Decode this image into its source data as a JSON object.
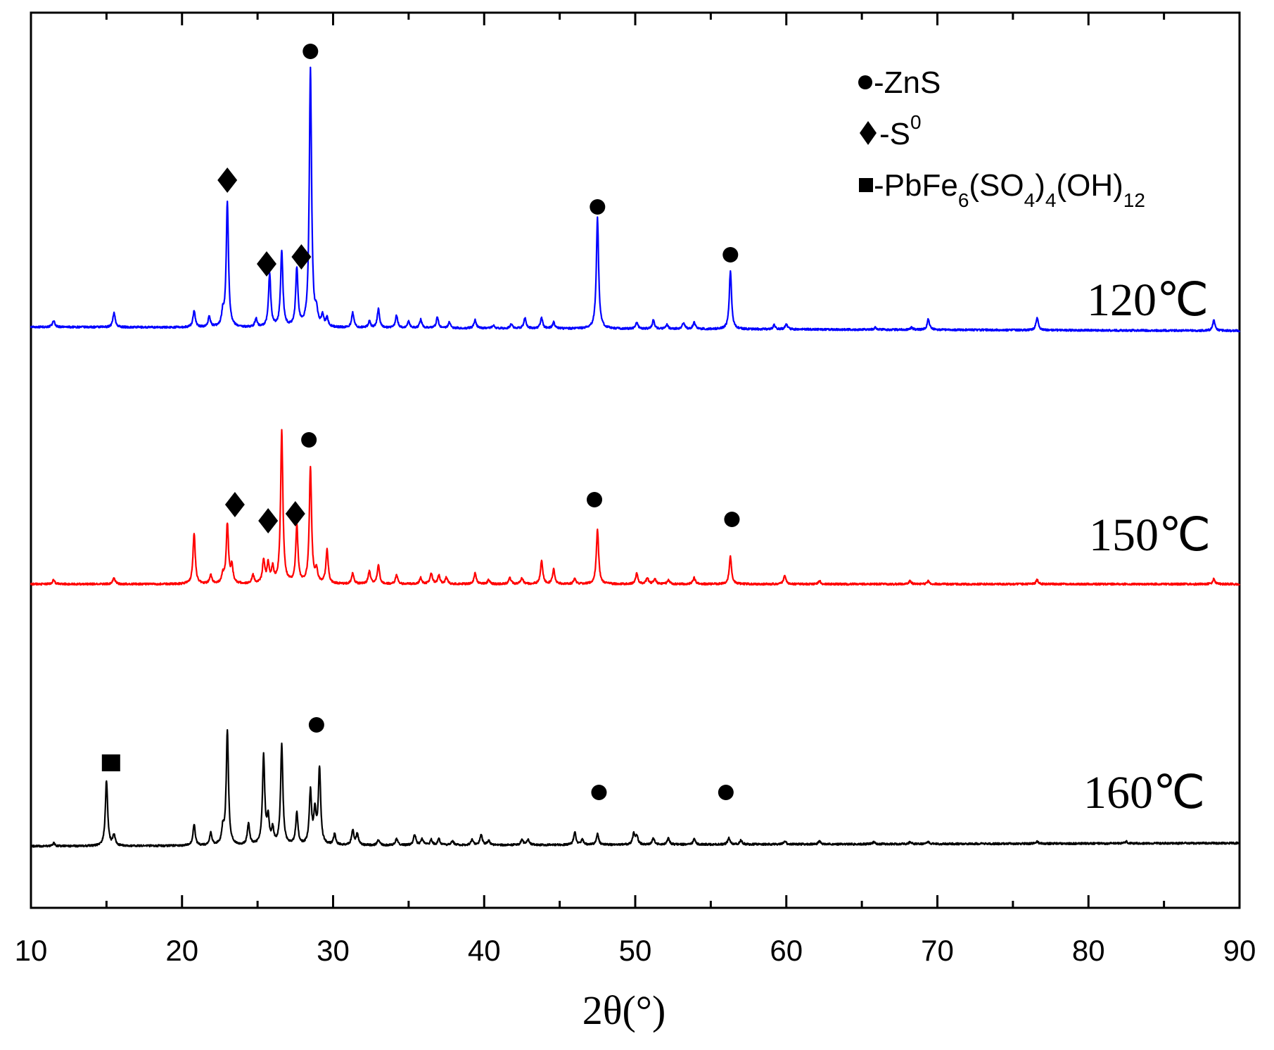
{
  "chart_data": {
    "type": "line",
    "xlabel": "2θ(°)",
    "ylabel": "",
    "xlim": [
      10,
      90
    ],
    "x_ticks": [
      "10",
      "20",
      "30",
      "40",
      "50",
      "60",
      "70",
      "80",
      "90"
    ],
    "y_ticks_shown": false,
    "grid": false,
    "legend": {
      "placement": "top-right",
      "entries": [
        {
          "marker": "circle",
          "prefix": "-ZnS",
          "main": "",
          "sub": "",
          "sup": ""
        },
        {
          "marker": "diamond",
          "prefix": "-S",
          "sup": "0"
        },
        {
          "marker": "square",
          "parts": [
            {
              "t": "-PbFe",
              "k": "n"
            },
            {
              "t": "6",
              "k": "sub"
            },
            {
              "t": "(SO",
              "k": "n"
            },
            {
              "t": "4",
              "k": "sub"
            },
            {
              "t": ")",
              "k": "n"
            },
            {
              "t": "4",
              "k": "sub"
            },
            {
              "t": "(OH)",
              "k": "n"
            },
            {
              "t": "12",
              "k": "sub"
            }
          ]
        }
      ]
    },
    "series": [
      {
        "label": "120℃",
        "color": "#0000ff",
        "baseline": 0.12,
        "peaks": [
          [
            11.5,
            0.06
          ],
          [
            15.5,
            0.14
          ],
          [
            20.8,
            0.16
          ],
          [
            21.8,
            0.1
          ],
          [
            22.7,
            0.12
          ],
          [
            23.0,
            1.18
          ],
          [
            24.9,
            0.08
          ],
          [
            25.8,
            0.5
          ],
          [
            26.6,
            0.72
          ],
          [
            27.6,
            0.55
          ],
          [
            28.5,
            2.45
          ],
          [
            28.9,
            0.12
          ],
          [
            29.3,
            0.1
          ],
          [
            29.6,
            0.08
          ],
          [
            31.3,
            0.14
          ],
          [
            32.4,
            0.06
          ],
          [
            33.0,
            0.18
          ],
          [
            34.2,
            0.12
          ],
          [
            35.0,
            0.06
          ],
          [
            35.8,
            0.08
          ],
          [
            36.9,
            0.1
          ],
          [
            37.7,
            0.06
          ],
          [
            39.4,
            0.08
          ],
          [
            40.6,
            0.03
          ],
          [
            41.8,
            0.04
          ],
          [
            42.7,
            0.1
          ],
          [
            43.8,
            0.1
          ],
          [
            44.6,
            0.06
          ],
          [
            47.5,
            1.05
          ],
          [
            50.1,
            0.06
          ],
          [
            51.2,
            0.08
          ],
          [
            52.1,
            0.04
          ],
          [
            53.2,
            0.06
          ],
          [
            53.9,
            0.06
          ],
          [
            56.3,
            0.55
          ],
          [
            59.2,
            0.04
          ],
          [
            60.0,
            0.05
          ],
          [
            65.9,
            0.02
          ],
          [
            68.3,
            0.02
          ],
          [
            69.4,
            0.1
          ],
          [
            76.6,
            0.12
          ],
          [
            88.3,
            0.1
          ]
        ]
      },
      {
        "label": "150℃",
        "color": "#ff0000",
        "baseline": 0.0,
        "peaks": [
          [
            11.5,
            0.04
          ],
          [
            15.5,
            0.06
          ],
          [
            20.8,
            0.48
          ],
          [
            21.9,
            0.08
          ],
          [
            22.7,
            0.08
          ],
          [
            23.0,
            0.56
          ],
          [
            23.3,
            0.16
          ],
          [
            24.7,
            0.08
          ],
          [
            25.4,
            0.22
          ],
          [
            25.7,
            0.18
          ],
          [
            26.0,
            0.14
          ],
          [
            26.6,
            1.45
          ],
          [
            27.6,
            0.54
          ],
          [
            28.5,
            1.1
          ],
          [
            28.9,
            0.12
          ],
          [
            29.6,
            0.32
          ],
          [
            31.3,
            0.1
          ],
          [
            32.4,
            0.12
          ],
          [
            33.0,
            0.18
          ],
          [
            34.2,
            0.08
          ],
          [
            35.8,
            0.06
          ],
          [
            36.5,
            0.1
          ],
          [
            37.0,
            0.08
          ],
          [
            37.5,
            0.06
          ],
          [
            39.4,
            0.1
          ],
          [
            40.3,
            0.04
          ],
          [
            41.7,
            0.06
          ],
          [
            42.5,
            0.06
          ],
          [
            43.8,
            0.22
          ],
          [
            44.6,
            0.14
          ],
          [
            46.0,
            0.05
          ],
          [
            47.5,
            0.52
          ],
          [
            50.1,
            0.1
          ],
          [
            50.8,
            0.06
          ],
          [
            51.3,
            0.05
          ],
          [
            52.2,
            0.04
          ],
          [
            53.9,
            0.06
          ],
          [
            56.3,
            0.26
          ],
          [
            59.9,
            0.08
          ],
          [
            62.2,
            0.03
          ],
          [
            68.2,
            0.03
          ],
          [
            69.4,
            0.03
          ],
          [
            76.6,
            0.04
          ],
          [
            88.3,
            0.05
          ]
        ]
      },
      {
        "label": "160℃",
        "color": "#000000",
        "baseline": -0.1,
        "peaks": [
          [
            11.5,
            0.03
          ],
          [
            15.0,
            0.62
          ],
          [
            15.5,
            0.1
          ],
          [
            20.8,
            0.2
          ],
          [
            21.9,
            0.12
          ],
          [
            22.7,
            0.14
          ],
          [
            23.0,
            1.08
          ],
          [
            24.4,
            0.2
          ],
          [
            25.4,
            0.84
          ],
          [
            25.7,
            0.24
          ],
          [
            26.0,
            0.14
          ],
          [
            26.6,
            0.95
          ],
          [
            27.6,
            0.3
          ],
          [
            28.5,
            0.5
          ],
          [
            28.8,
            0.3
          ],
          [
            29.1,
            0.72
          ],
          [
            30.1,
            0.1
          ],
          [
            31.3,
            0.14
          ],
          [
            31.6,
            0.1
          ],
          [
            33.0,
            0.05
          ],
          [
            34.2,
            0.06
          ],
          [
            35.4,
            0.1
          ],
          [
            35.9,
            0.06
          ],
          [
            36.5,
            0.05
          ],
          [
            37.0,
            0.06
          ],
          [
            37.9,
            0.04
          ],
          [
            39.2,
            0.05
          ],
          [
            39.8,
            0.1
          ],
          [
            40.3,
            0.04
          ],
          [
            42.5,
            0.05
          ],
          [
            42.9,
            0.05
          ],
          [
            46.0,
            0.12
          ],
          [
            46.5,
            0.05
          ],
          [
            47.5,
            0.1
          ],
          [
            49.9,
            0.1
          ],
          [
            50.1,
            0.08
          ],
          [
            51.2,
            0.06
          ],
          [
            52.2,
            0.06
          ],
          [
            53.9,
            0.05
          ],
          [
            56.2,
            0.06
          ],
          [
            57.0,
            0.04
          ],
          [
            59.9,
            0.03
          ],
          [
            62.2,
            0.03
          ],
          [
            65.8,
            0.02
          ],
          [
            68.2,
            0.02
          ],
          [
            69.4,
            0.02
          ],
          [
            76.6,
            0.02
          ],
          [
            82.5,
            0.02
          ]
        ]
      }
    ],
    "annotations": [
      {
        "series": "120℃",
        "marker": "circle",
        "x": 28.5
      },
      {
        "series": "120℃",
        "marker": "diamond",
        "x": 23.0
      },
      {
        "series": "120℃",
        "marker": "diamond",
        "x": 25.6
      },
      {
        "series": "120℃",
        "marker": "diamond",
        "x": 27.9
      },
      {
        "series": "120℃",
        "marker": "circle",
        "x": 47.5
      },
      {
        "series": "120℃",
        "marker": "circle",
        "x": 56.3
      },
      {
        "series": "150℃",
        "marker": "circle",
        "x": 28.4
      },
      {
        "series": "150℃",
        "marker": "diamond",
        "x": 23.5
      },
      {
        "series": "150℃",
        "marker": "diamond",
        "x": 25.7
      },
      {
        "series": "150℃",
        "marker": "diamond",
        "x": 27.5
      },
      {
        "series": "150℃",
        "marker": "circle",
        "x": 47.3
      },
      {
        "series": "150℃",
        "marker": "circle",
        "x": 56.4
      },
      {
        "series": "160℃",
        "marker": "square",
        "x": 15.3
      },
      {
        "series": "160℃",
        "marker": "circle",
        "x": 28.9
      },
      {
        "series": "160℃",
        "marker": "circle",
        "x": 47.6
      },
      {
        "series": "160℃",
        "marker": "circle",
        "x": 56.0
      }
    ]
  }
}
